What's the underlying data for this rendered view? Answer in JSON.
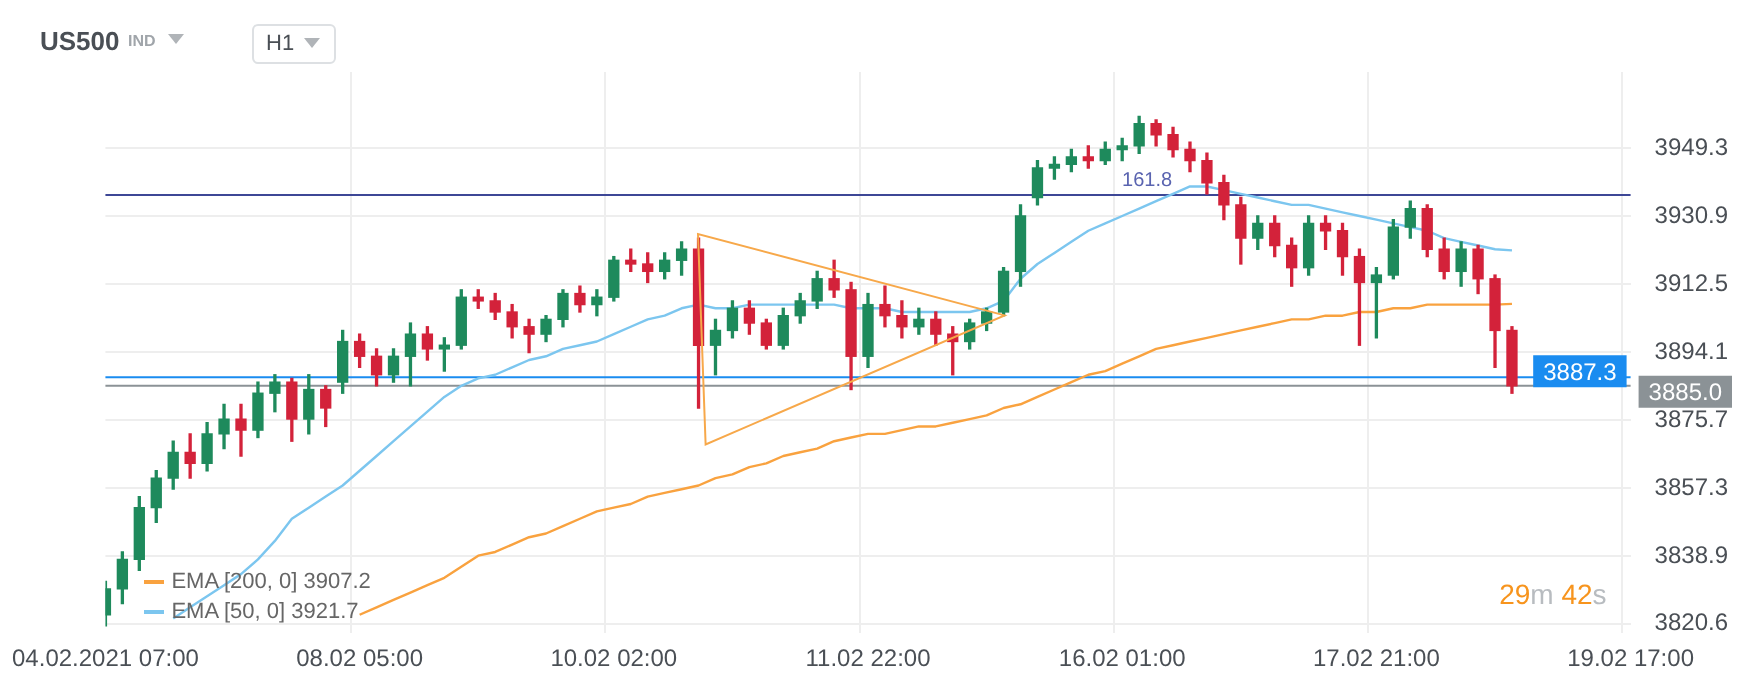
{
  "chart_data": {
    "type": "candlestick",
    "title": "US500",
    "subtitle": "IND",
    "categories": [
      "04.02.2021 07:00",
      null,
      null,
      null,
      null,
      null,
      null,
      null,
      null,
      null,
      null,
      null,
      null,
      null,
      null,
      "08.02 05:00",
      null,
      null,
      null,
      null,
      null,
      null,
      null,
      null,
      null,
      null,
      null,
      null,
      null,
      null,
      "10.02 02:00",
      null,
      null,
      null,
      null,
      null,
      null,
      null,
      null,
      null,
      null,
      null,
      null,
      null,
      null,
      "11.02 22:00",
      null,
      null,
      null,
      null,
      null,
      null,
      null,
      null,
      null,
      null,
      null,
      null,
      null,
      null,
      "16.02 01:00",
      null,
      null,
      null,
      null,
      null,
      null,
      null,
      null,
      null,
      null,
      null,
      null,
      null,
      null,
      "17.02 21:00",
      null,
      null,
      null,
      null,
      null,
      null,
      null,
      null,
      null,
      null,
      null,
      null,
      null,
      null,
      "19.02 17:00"
    ],
    "ohlc": [
      [
        3823,
        3832,
        3820,
        3830
      ],
      [
        3830,
        3840,
        3826,
        3838
      ],
      [
        3838,
        3855,
        3835,
        3852
      ],
      [
        3852,
        3862,
        3848,
        3860
      ],
      [
        3860,
        3870,
        3857,
        3867
      ],
      [
        3867,
        3872,
        3860,
        3864
      ],
      [
        3864,
        3875,
        3862,
        3872
      ],
      [
        3872,
        3880,
        3868,
        3876
      ],
      [
        3876,
        3880,
        3866,
        3873
      ],
      [
        3873,
        3886,
        3871,
        3883
      ],
      [
        3883,
        3888,
        3878,
        3886
      ],
      [
        3886,
        3887,
        3870,
        3876
      ],
      [
        3876,
        3888,
        3872,
        3884
      ],
      [
        3884,
        3885,
        3874,
        3879
      ],
      [
        3886,
        3900,
        3883,
        3897
      ],
      [
        3897,
        3899,
        3890,
        3893
      ],
      [
        3893,
        3895,
        3885,
        3888
      ],
      [
        3888,
        3895,
        3886,
        3893
      ],
      [
        3893,
        3902,
        3885,
        3899
      ],
      [
        3899,
        3901,
        3892,
        3895
      ],
      [
        3895,
        3898,
        3889,
        3896
      ],
      [
        3896,
        3911,
        3895,
        3909
      ],
      [
        3909,
        3911,
        3906,
        3908
      ],
      [
        3908,
        3910,
        3903,
        3905
      ],
      [
        3905,
        3907,
        3898,
        3901
      ],
      [
        3901,
        3903,
        3894,
        3899
      ],
      [
        3899,
        3904,
        3897,
        3903
      ],
      [
        3903,
        3911,
        3901,
        3910
      ],
      [
        3910,
        3912,
        3905,
        3907
      ],
      [
        3907,
        3911,
        3904,
        3909
      ],
      [
        3909,
        3920,
        3908,
        3919
      ],
      [
        3919,
        3922,
        3916,
        3918
      ],
      [
        3918,
        3921,
        3913,
        3916
      ],
      [
        3916,
        3921,
        3914,
        3919
      ],
      [
        3919,
        3924,
        3915,
        3922
      ],
      [
        3922,
        3925,
        3879,
        3896
      ],
      [
        3896,
        3903,
        3888,
        3900
      ],
      [
        3900,
        3908,
        3898,
        3906
      ],
      [
        3906,
        3908,
        3899,
        3902
      ],
      [
        3902,
        3903,
        3895,
        3896
      ],
      [
        3896,
        3906,
        3895,
        3904
      ],
      [
        3904,
        3910,
        3902,
        3908
      ],
      [
        3908,
        3916,
        3906,
        3914
      ],
      [
        3914,
        3919,
        3909,
        3911
      ],
      [
        3911,
        3913,
        3884,
        3893
      ],
      [
        3893,
        3910,
        3890,
        3907
      ],
      [
        3907,
        3912,
        3901,
        3904
      ],
      [
        3904,
        3908,
        3898,
        3901
      ],
      [
        3901,
        3906,
        3899,
        3903
      ],
      [
        3903,
        3905,
        3896,
        3899
      ],
      [
        3899,
        3901,
        3888,
        3897
      ],
      [
        3897,
        3903,
        3895,
        3902
      ],
      [
        3902,
        3906,
        3900,
        3905
      ],
      [
        3905,
        3917,
        3904,
        3916
      ],
      [
        3916,
        3934,
        3912,
        3931
      ],
      [
        3936,
        3946,
        3934,
        3944
      ],
      [
        3944,
        3947,
        3941,
        3945
      ],
      [
        3945,
        3949,
        3943,
        3947
      ],
      [
        3947,
        3950,
        3944,
        3946
      ],
      [
        3946,
        3951,
        3945,
        3949
      ],
      [
        3949,
        3952,
        3946,
        3950
      ],
      [
        3950,
        3958,
        3948,
        3956
      ],
      [
        3956,
        3957,
        3950,
        3953
      ],
      [
        3953,
        3955,
        3947,
        3949
      ],
      [
        3949,
        3951,
        3943,
        3946
      ],
      [
        3946,
        3948,
        3937,
        3940
      ],
      [
        3940,
        3942,
        3930,
        3934
      ],
      [
        3934,
        3936,
        3918,
        3925
      ],
      [
        3925,
        3931,
        3922,
        3929
      ],
      [
        3929,
        3931,
        3920,
        3923
      ],
      [
        3923,
        3925,
        3912,
        3917
      ],
      [
        3917,
        3931,
        3915,
        3929
      ],
      [
        3929,
        3931,
        3922,
        3927
      ],
      [
        3927,
        3929,
        3915,
        3920
      ],
      [
        3920,
        3922,
        3896,
        3913
      ],
      [
        3913,
        3917,
        3898,
        3915
      ],
      [
        3915,
        3930,
        3914,
        3928
      ],
      [
        3928,
        3935,
        3925,
        3933
      ],
      [
        3933,
        3934,
        3920,
        3922
      ],
      [
        3922,
        3925,
        3914,
        3916
      ],
      [
        3916,
        3924,
        3912,
        3922
      ],
      [
        3922,
        3923,
        3910,
        3914
      ],
      [
        3914,
        3915,
        3890,
        3900
      ],
      [
        3900,
        3901,
        3883,
        3885
      ],
      null,
      null,
      null,
      null,
      null,
      null,
      null
    ],
    "colors": [
      "#1e8a5c",
      "#1e8a5c",
      "#1e8a5c",
      "#1e8a5c",
      "#1e8a5c",
      "#d3223a",
      "#1e8a5c",
      "#1e8a5c",
      "#d3223a",
      "#1e8a5c",
      "#1e8a5c",
      "#d3223a",
      "#1e8a5c",
      "#d3223a",
      "#1e8a5c",
      "#d3223a",
      "#d3223a",
      "#1e8a5c",
      "#1e8a5c",
      "#d3223a",
      "#1e8a5c",
      "#1e8a5c",
      "#d3223a",
      "#d3223a",
      "#d3223a",
      "#d3223a",
      "#1e8a5c",
      "#1e8a5c",
      "#d3223a",
      "#1e8a5c",
      "#1e8a5c",
      "#d3223a",
      "#d3223a",
      "#1e8a5c",
      "#1e8a5c",
      "#d3223a",
      "#1e8a5c",
      "#1e8a5c",
      "#d3223a",
      "#d3223a",
      "#1e8a5c",
      "#1e8a5c",
      "#1e8a5c",
      "#d3223a",
      "#d3223a",
      "#1e8a5c",
      "#d3223a",
      "#d3223a",
      "#1e8a5c",
      "#d3223a",
      "#d3223a",
      "#1e8a5c",
      "#1e8a5c",
      "#1e8a5c",
      "#1e8a5c",
      "#1e8a5c",
      "#1e8a5c",
      "#1e8a5c",
      "#d3223a",
      "#1e8a5c",
      "#1e8a5c",
      "#1e8a5c",
      "#d3223a",
      "#d3223a",
      "#d3223a",
      "#d3223a",
      "#d3223a",
      "#d3223a",
      "#1e8a5c",
      "#d3223a",
      "#d3223a",
      "#1e8a5c",
      "#d3223a",
      "#d3223a",
      "#d3223a",
      "#1e8a5c",
      "#1e8a5c",
      "#1e8a5c",
      "#d3223a",
      "#d3223a",
      "#1e8a5c",
      "#d3223a",
      "#d3223a",
      "#d3223a",
      null,
      null,
      null,
      null,
      null,
      null,
      null
    ],
    "series": [
      {
        "name": "EMA [200, 0] 3907.2",
        "type": "line",
        "color": "#f9a23f",
        "values": [
          null,
          null,
          null,
          null,
          null,
          null,
          null,
          null,
          null,
          null,
          null,
          null,
          null,
          null,
          null,
          3823,
          3825,
          3827,
          3829,
          3831,
          3833,
          3836,
          3839,
          3840,
          3842,
          3844,
          3845,
          3847,
          3849,
          3851,
          3852,
          3853,
          3855,
          3856,
          3857,
          3858,
          3860,
          3861,
          3863,
          3864,
          3866,
          3867,
          3868,
          3870,
          3871,
          3872,
          3872,
          3873,
          3874,
          3874,
          3875,
          3876,
          3877,
          3879,
          3880,
          3882,
          3884,
          3886,
          3888,
          3889,
          3891,
          3893,
          3895,
          3896,
          3897,
          3898,
          3899,
          3900,
          3901,
          3902,
          3903,
          3903,
          3904,
          3904,
          3905,
          3905,
          3906,
          3906,
          3907,
          3907,
          3907,
          3907,
          3907,
          3907.2,
          null,
          null,
          null,
          null,
          null,
          null,
          null
        ]
      },
      {
        "name": "EMA [50, 0] 3921.7",
        "type": "line",
        "color": "#7cc6ef",
        "values": [
          null,
          null,
          null,
          null,
          3822,
          3825,
          3828,
          3831,
          3834,
          3838,
          3843,
          3849,
          3852,
          3855,
          3858,
          3862,
          3866,
          3870,
          3874,
          3878,
          3882,
          3885,
          3887,
          3888,
          3890,
          3892,
          3893,
          3895,
          3896,
          3897,
          3899,
          3901,
          3903,
          3904,
          3906,
          3907,
          3906,
          3906,
          3907,
          3907,
          3907,
          3907,
          3907,
          3907,
          3906,
          3906,
          3906,
          3905,
          3905,
          3905,
          3905,
          3905,
          3906,
          3908,
          3914,
          3918,
          3921,
          3924,
          3927,
          3929,
          3931,
          3933,
          3935,
          3937,
          3939,
          3939,
          3938,
          3937,
          3936,
          3935,
          3934,
          3934,
          3933,
          3932,
          3931,
          3930,
          3929,
          3928,
          3927,
          3925,
          3924,
          3923,
          3922,
          3921.7,
          null,
          null,
          null,
          null,
          null,
          null,
          null
        ]
      }
    ],
    "ylim": [
      3818,
      3970
    ],
    "yticks": [
      3820.6,
      3838.9,
      3857.3,
      3875.7,
      3894.1,
      3912.5,
      3930.9,
      3949.3
    ],
    "ref_lines": [
      {
        "axis": "y",
        "value": 3936.7,
        "color": "#3d4796"
      },
      {
        "axis": "y",
        "value": 3887.3,
        "label": "3887.3",
        "color": "#1a8cf0"
      },
      {
        "axis": "y",
        "value": 3885.0,
        "label": "3885.0",
        "color": "#8b9296"
      }
    ],
    "annotations": [
      "H1",
      {
        "text": "161.8",
        "y": 3936.7
      },
      "29m 42s"
    ],
    "grid": true,
    "legend": "bottom left",
    "marker": "none",
    "line_style": "solid"
  }
}
